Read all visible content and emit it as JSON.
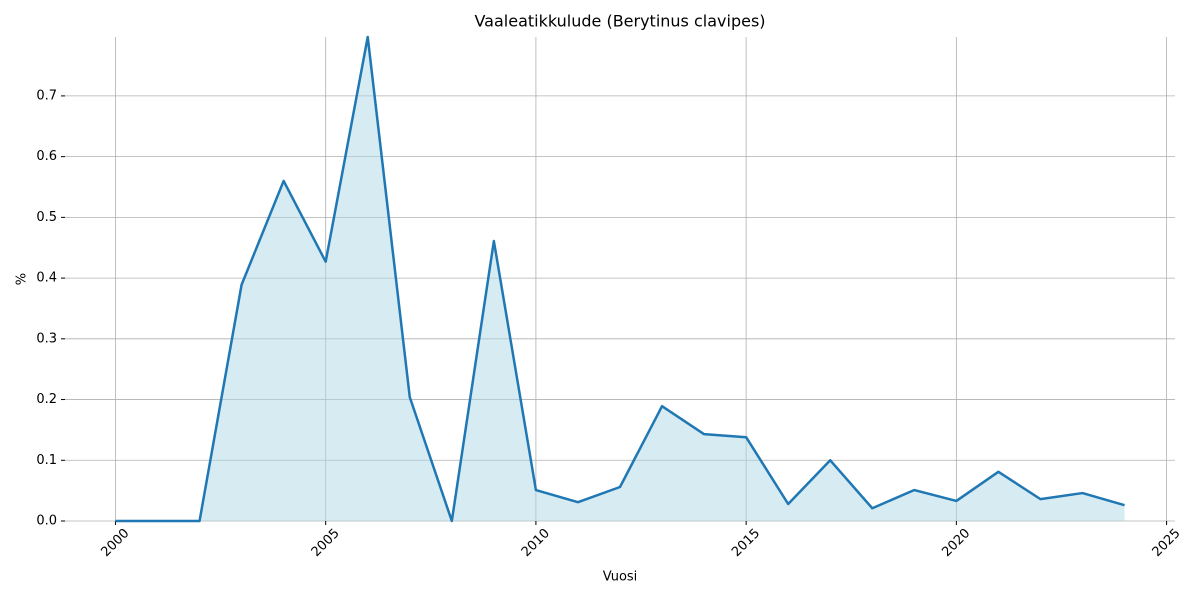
{
  "chart_data": {
    "type": "area",
    "title": "Vaaleatikkulude (Berytinus clavipes)",
    "x_label": "Vuosi",
    "y_label": "%",
    "x": [
      2000,
      2001,
      2002,
      2003,
      2004,
      2005,
      2006,
      2007,
      2008,
      2009,
      2010,
      2011,
      2012,
      2013,
      2014,
      2015,
      2016,
      2017,
      2018,
      2019,
      2020,
      2021,
      2022,
      2023,
      2024
    ],
    "values": [
      0,
      0,
      0,
      0.389,
      0.56,
      0.427,
      0.797,
      0.204,
      0,
      0.461,
      0.051,
      0.031,
      0.056,
      0.189,
      0.143,
      0.138,
      0.028,
      0.1,
      0.021,
      0.051,
      0.033,
      0.081,
      0.036,
      0.046,
      0.026
    ],
    "color": "#1f77b4",
    "fill_color": "#add8e6",
    "xlim": [
      1998.8,
      2025.2
    ],
    "xticks": [
      2000,
      2005,
      2010,
      2015,
      2020,
      2025
    ],
    "ylim": [
      0,
      0.797
    ],
    "yticks": [
      {
        "value": 0,
        "label": "0.0"
      },
      0.1,
      0.2,
      0.3,
      0.4,
      0.5,
      0.6,
      0.7
    ],
    "grid": true
  }
}
